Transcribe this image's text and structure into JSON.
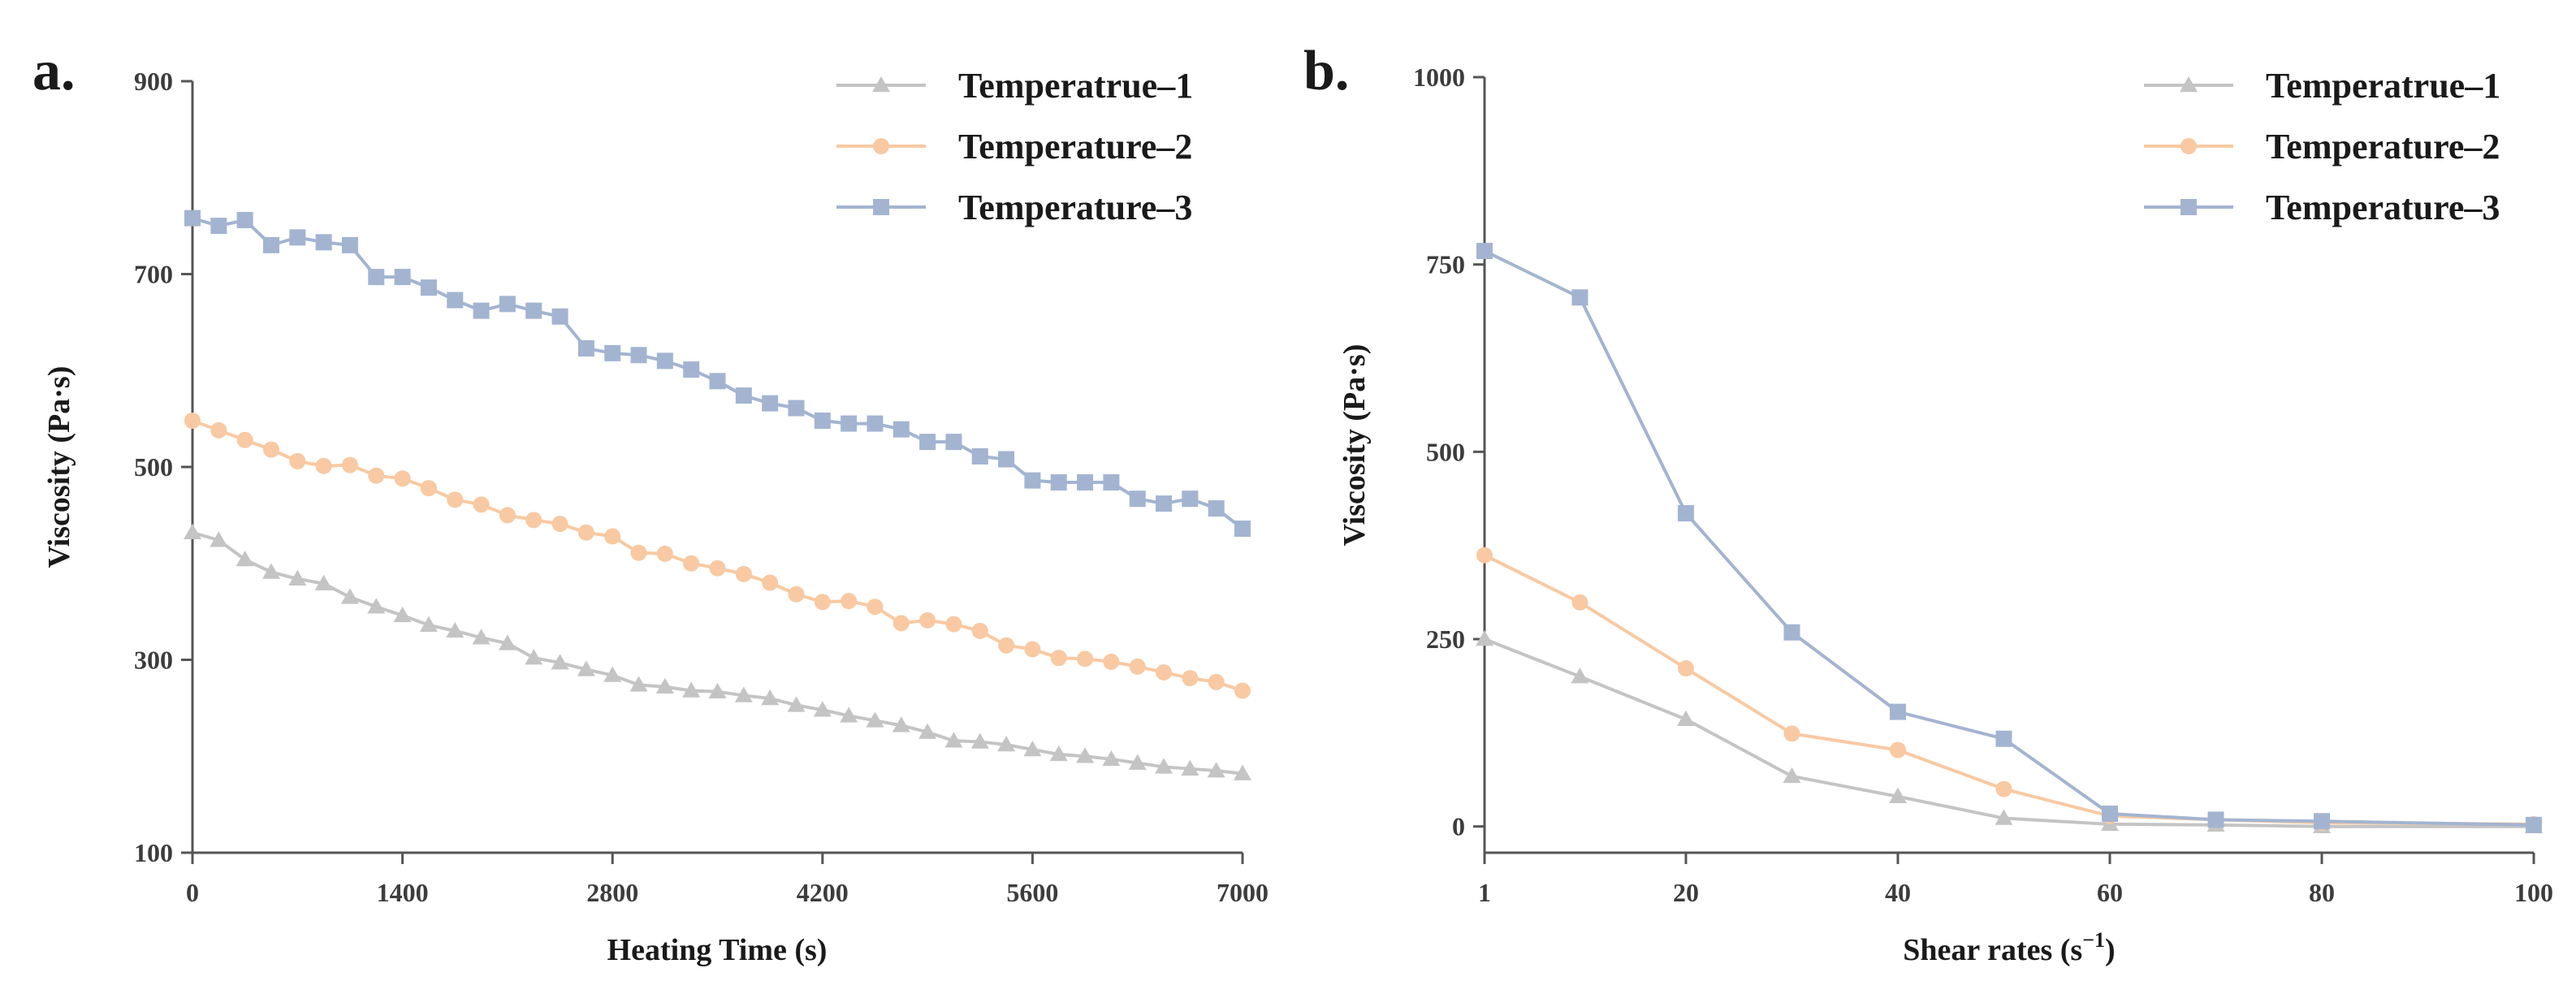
{
  "chart_data": [
    {
      "panel_label": "a.",
      "type": "line",
      "xlabel": "Heating Time (s)",
      "ylabel": "Viscosity (Pa·s)",
      "xlim": [
        0,
        7000
      ],
      "ylim": [
        100,
        900
      ],
      "xticks": [
        0,
        1400,
        2800,
        4200,
        5600,
        7000
      ],
      "yticks": [
        100,
        300,
        500,
        700,
        900
      ],
      "legend_position": "top-right",
      "x": [
        0,
        175,
        350,
        525,
        700,
        875,
        1050,
        1225,
        1400,
        1575,
        1750,
        1925,
        2100,
        2275,
        2450,
        2625,
        2800,
        2975,
        3150,
        3325,
        3500,
        3675,
        3850,
        4025,
        4200,
        4375,
        4550,
        4725,
        4900,
        5075,
        5250,
        5425,
        5600,
        5775,
        5950,
        6125,
        6300,
        6475,
        6650,
        6825,
        7000
      ],
      "series": [
        {
          "name": "Temperatrue–1",
          "marker": "triangle",
          "color": "#c4c4c4",
          "values": [
            432,
            424,
            404,
            391,
            384,
            379,
            365,
            355,
            346,
            336,
            330,
            323,
            317,
            302,
            297,
            290,
            284,
            274,
            272,
            268,
            267,
            263,
            260,
            253,
            248,
            242,
            237,
            232,
            225,
            216,
            215,
            212,
            207,
            202,
            200,
            197,
            193,
            189,
            187,
            185,
            182
          ]
        },
        {
          "name": "Temperature–2",
          "marker": "circle",
          "color": "#f8c9a2",
          "values": [
            548,
            538,
            528,
            518,
            506,
            501,
            502,
            491,
            488,
            478,
            466,
            461,
            450,
            445,
            441,
            432,
            428,
            411,
            410,
            400,
            395,
            389,
            380,
            368,
            360,
            361,
            355,
            338,
            341,
            337,
            330,
            315,
            311,
            302,
            301,
            298,
            293,
            287,
            281,
            277,
            268
          ]
        },
        {
          "name": "Temperature–3",
          "marker": "square",
          "color": "#a3b4d1",
          "values": [
            758,
            750,
            756,
            730,
            738,
            733,
            730,
            697,
            697,
            686,
            673,
            662,
            669,
            662,
            656,
            623,
            618,
            616,
            610,
            601,
            589,
            574,
            566,
            561,
            548,
            545,
            545,
            539,
            526,
            526,
            511,
            508,
            486,
            484,
            484,
            484,
            467,
            462,
            467,
            457,
            436
          ]
        }
      ]
    },
    {
      "panel_label": "b.",
      "type": "line",
      "xlabel": "Shear rates (s",
      "xlabel_sup": "−1",
      "xlabel_close": ")",
      "ylabel": "Viscosity (Pa·s)",
      "xlim": [
        1,
        100
      ],
      "ylim": [
        -35,
        1000
      ],
      "xticks": [
        1,
        20,
        40,
        60,
        80,
        100
      ],
      "yticks": [
        0,
        250,
        500,
        750,
        1000
      ],
      "legend_position": "top-right",
      "x": [
        1,
        10,
        20,
        30,
        40,
        50,
        60,
        70,
        80,
        100
      ],
      "series": [
        {
          "name": "Temperatrue–1",
          "marker": "triangle",
          "color": "#c4c4c4",
          "values": [
            250,
            200,
            143,
            67,
            40,
            11,
            3,
            2,
            0,
            0
          ]
        },
        {
          "name": "Temperature–2",
          "marker": "circle",
          "color": "#f8c9a2",
          "values": [
            362,
            299,
            211,
            124,
            102,
            50,
            14,
            9,
            5,
            3
          ]
        },
        {
          "name": "Temperature–3",
          "marker": "square",
          "color": "#a3b4d1",
          "values": [
            768,
            706,
            418,
            259,
            153,
            117,
            17,
            9,
            7,
            2
          ]
        }
      ]
    }
  ]
}
